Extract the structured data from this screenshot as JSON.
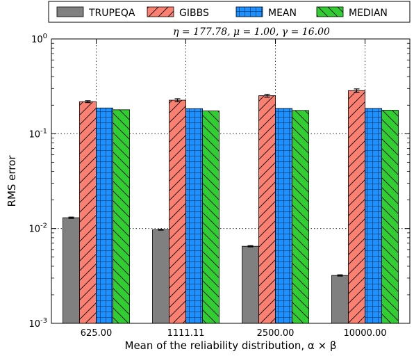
{
  "chart_data": {
    "type": "bar",
    "subtitle": "η = 177.78, μ = 1.00, γ = 16.00",
    "xlabel": "Mean of the reliability distribution, α × β",
    "ylabel": "RMS error",
    "y_scale": "log",
    "ylim": [
      0.001,
      1
    ],
    "y_ticks": [
      {
        "value": 0.001,
        "base": "10",
        "exp": "-3"
      },
      {
        "value": 0.01,
        "base": "10",
        "exp": "-2"
      },
      {
        "value": 0.1,
        "base": "10",
        "exp": "-1"
      },
      {
        "value": 1,
        "base": "10",
        "exp": "0"
      }
    ],
    "categories": [
      "625.00",
      "1111.11",
      "2500.00",
      "10000.00"
    ],
    "grid": true,
    "legend_position": "top",
    "series": [
      {
        "name": "TRUPEQA",
        "color": "#808080",
        "hatch": "none",
        "values": [
          0.013,
          0.0097,
          0.0065,
          0.0032
        ],
        "errors": [
          0.0002,
          0.0001,
          0.0001,
          5e-05
        ]
      },
      {
        "name": "GIBBS",
        "color": "#fa8072",
        "hatch": "forward-slash",
        "values": [
          0.218,
          0.226,
          0.252,
          0.285
        ],
        "errors": [
          0.005,
          0.008,
          0.009,
          0.012
        ]
      },
      {
        "name": "MEAN",
        "color": "#1e90ff",
        "hatch": "grid",
        "values": [
          0.187,
          0.184,
          0.185,
          0.185
        ],
        "errors": [
          0.0,
          0.0,
          0.0,
          0.0
        ]
      },
      {
        "name": "MEDIAN",
        "color": "#32cd32",
        "hatch": "back-slash",
        "values": [
          0.179,
          0.174,
          0.176,
          0.177
        ],
        "errors": [
          0.0,
          0.0,
          0.0,
          0.0
        ]
      }
    ]
  }
}
